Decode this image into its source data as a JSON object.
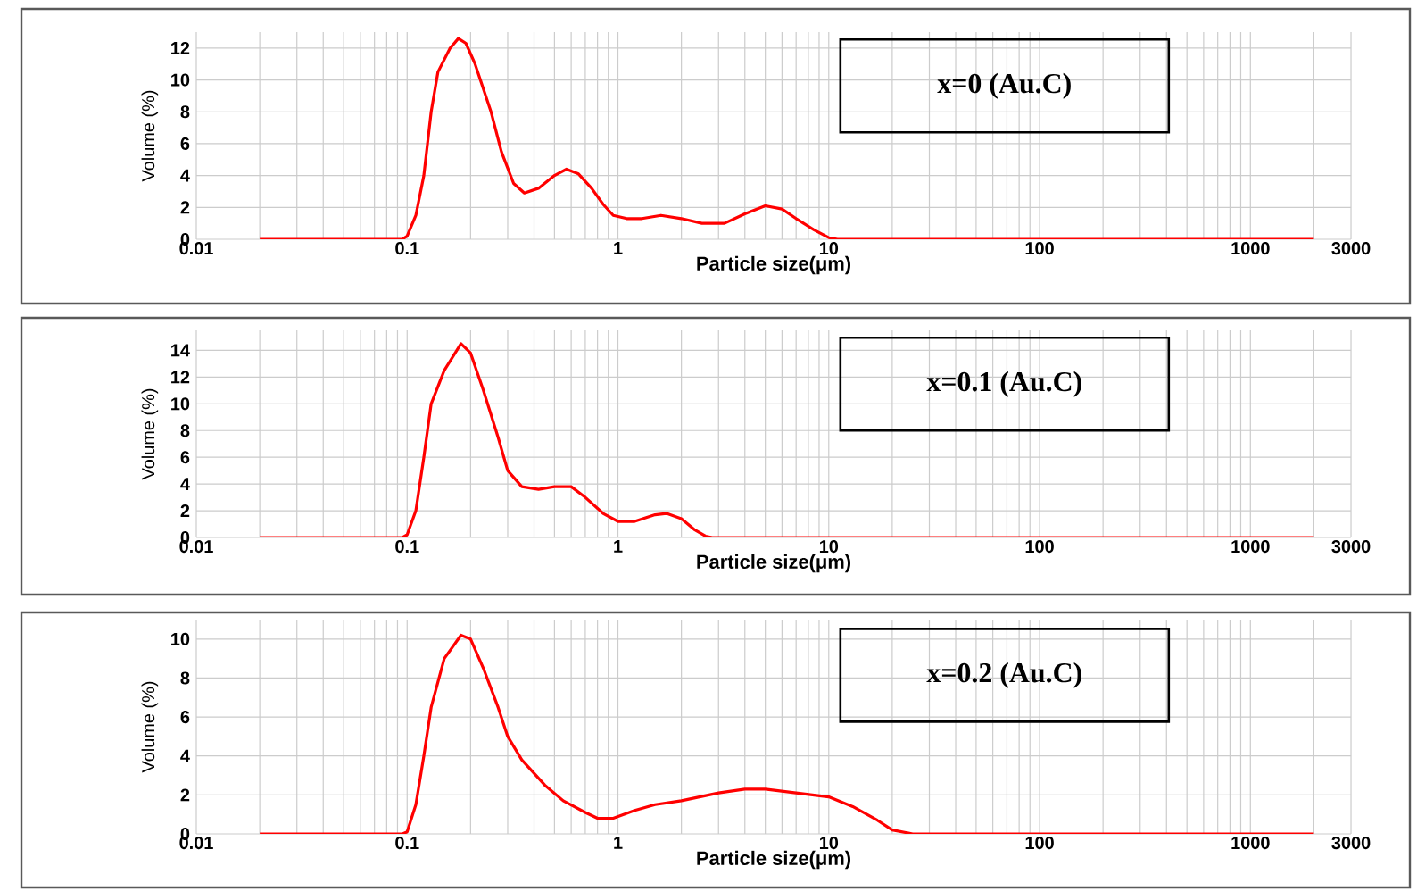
{
  "chart_data": [
    {
      "type": "line",
      "xlabel": "Particle size(μm)",
      "ylabel": "Volume (%)",
      "log": "x",
      "grid": true,
      "xlim": [
        0.01,
        3000
      ],
      "xticks": [
        0.01,
        0.1,
        1,
        10,
        100,
        1000,
        3000
      ],
      "ylim": [
        0,
        13
      ],
      "yticks": [
        0,
        2,
        4,
        6,
        8,
        10,
        12
      ],
      "annotations": [
        "x=0 (Au.C)"
      ],
      "series": [
        {
          "color": "#ff0000",
          "x": [
            0.02,
            0.095,
            0.1,
            0.11,
            0.12,
            0.13,
            0.14,
            0.16,
            0.175,
            0.19,
            0.21,
            0.25,
            0.28,
            0.32,
            0.36,
            0.42,
            0.5,
            0.57,
            0.65,
            0.75,
            0.85,
            0.95,
            1.1,
            1.3,
            1.6,
            2,
            2.5,
            3.2,
            4,
            5,
            6,
            7,
            8.5,
            10,
            11,
            2000
          ],
          "values": [
            0,
            0,
            0.2,
            1.5,
            4,
            8,
            10.5,
            12,
            12.6,
            12.3,
            11,
            8,
            5.5,
            3.5,
            2.9,
            3.2,
            4,
            4.4,
            4.1,
            3.2,
            2.2,
            1.5,
            1.3,
            1.3,
            1.5,
            1.3,
            1,
            1,
            1.6,
            2.1,
            1.9,
            1.3,
            0.6,
            0.1,
            0,
            0
          ]
        }
      ]
    },
    {
      "type": "line",
      "xlabel": "Particle size(μm)",
      "ylabel": "Volume (%)",
      "log": "x",
      "grid": true,
      "xlim": [
        0.01,
        3000
      ],
      "xticks": [
        0.01,
        0.1,
        1,
        10,
        100,
        1000,
        3000
      ],
      "ylim": [
        0,
        15.5
      ],
      "yticks": [
        0,
        2,
        4,
        6,
        8,
        10,
        12,
        14
      ],
      "annotations": [
        "x=0.1 (Au.C)"
      ],
      "series": [
        {
          "color": "#ff0000",
          "x": [
            0.02,
            0.095,
            0.1,
            0.11,
            0.12,
            0.13,
            0.15,
            0.18,
            0.2,
            0.23,
            0.27,
            0.3,
            0.35,
            0.42,
            0.5,
            0.6,
            0.7,
            0.85,
            1,
            1.2,
            1.5,
            1.7,
            2,
            2.3,
            2.6,
            2.8,
            2000
          ],
          "values": [
            0,
            0,
            0.2,
            2,
            6,
            10,
            12.5,
            14.5,
            13.8,
            11,
            7.5,
            5,
            3.8,
            3.6,
            3.8,
            3.8,
            3,
            1.8,
            1.2,
            1.2,
            1.7,
            1.8,
            1.4,
            0.6,
            0.1,
            0,
            0
          ]
        }
      ]
    },
    {
      "type": "line",
      "xlabel": "Particle size(μm)",
      "ylabel": "Volume (%)",
      "log": "x",
      "grid": true,
      "xlim": [
        0.01,
        3000
      ],
      "xticks": [
        0.01,
        0.1,
        1,
        10,
        100,
        1000,
        3000
      ],
      "ylim": [
        0,
        11
      ],
      "yticks": [
        0,
        2,
        4,
        6,
        8,
        10
      ],
      "annotations": [
        "x=0.2 (Au.C)"
      ],
      "series": [
        {
          "color": "#ff0000",
          "x": [
            0.02,
            0.095,
            0.1,
            0.11,
            0.12,
            0.13,
            0.15,
            0.18,
            0.2,
            0.23,
            0.27,
            0.3,
            0.35,
            0.45,
            0.55,
            0.7,
            0.8,
            0.95,
            1.2,
            1.5,
            2,
            3,
            4,
            5,
            7,
            10,
            13,
            17,
            20,
            25,
            2000
          ],
          "values": [
            0,
            0,
            0.1,
            1.5,
            4,
            6.5,
            9,
            10.2,
            10,
            8.5,
            6.5,
            5,
            3.8,
            2.5,
            1.7,
            1.1,
            0.8,
            0.8,
            1.2,
            1.5,
            1.7,
            2.1,
            2.3,
            2.3,
            2.1,
            1.9,
            1.4,
            0.7,
            0.2,
            0,
            0
          ]
        }
      ]
    }
  ]
}
